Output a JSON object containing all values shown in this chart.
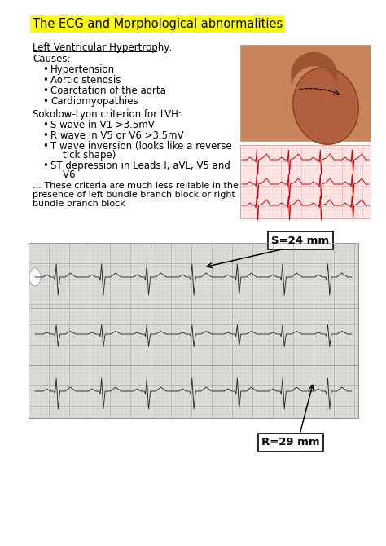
{
  "title": "The ECG and Morphological abnormalities",
  "title_bg": "#ffff00",
  "title_fontsize": 10.5,
  "section1_heading": "Left Ventricular Hypertrophy:",
  "section1_sub": "Causes:",
  "causes": [
    "Hypertension",
    "Aortic stenosis",
    "Coarctation of the aorta",
    "Cardiomyopathies"
  ],
  "section2_heading": "Sokolow-Lyon criterion for LVH:",
  "criteria_lines": [
    [
      "S wave in V1 >3.5mV"
    ],
    [
      "R wave in V5 or V6 >3.5mV"
    ],
    [
      "T wave inversion (looks like a reverse",
      "    tick shape)"
    ],
    [
      "ST depression in Leads I, aVL, V5 and",
      "    V6"
    ]
  ],
  "footnote_lines": [
    "... These criteria are much less reliable in the",
    "presence of left bundle branch block or right",
    "bundle branch block"
  ],
  "annotation1": "S=24 mm",
  "annotation2": "R=29 mm",
  "bg_color": "#ffffff",
  "text_color": "#000000",
  "body_fontsize": 8.5,
  "small_fontsize": 8.0
}
